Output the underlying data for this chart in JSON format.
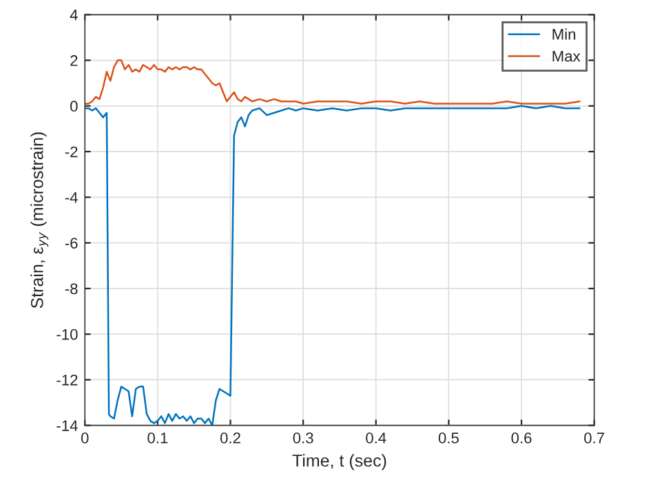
{
  "chart_data": {
    "type": "line",
    "xlabel": "Time, t (sec)",
    "ylabel": "Strain, ε$_{yy}$ (microstrain)",
    "xlim": [
      0,
      0.7
    ],
    "xticks": [
      0,
      0.1,
      0.2,
      0.3,
      0.4,
      0.5,
      0.6,
      0.7
    ],
    "ylim": [
      -14,
      4
    ],
    "yticks": [
      -14,
      -12,
      -10,
      -8,
      -6,
      -4,
      -2,
      0,
      2,
      4
    ],
    "grid": true,
    "legend": "top right",
    "series": [
      {
        "name": "Min",
        "color": "#0072bd",
        "x": [
          0,
          0.005,
          0.01,
          0.015,
          0.02,
          0.025,
          0.03,
          0.033,
          0.035,
          0.04,
          0.045,
          0.05,
          0.055,
          0.06,
          0.065,
          0.07,
          0.075,
          0.08,
          0.085,
          0.09,
          0.095,
          0.1,
          0.105,
          0.11,
          0.115,
          0.12,
          0.125,
          0.13,
          0.135,
          0.14,
          0.145,
          0.15,
          0.155,
          0.16,
          0.165,
          0.17,
          0.175,
          0.18,
          0.185,
          0.19,
          0.195,
          0.2,
          0.205,
          0.21,
          0.215,
          0.22,
          0.225,
          0.23,
          0.24,
          0.25,
          0.26,
          0.27,
          0.28,
          0.29,
          0.3,
          0.32,
          0.34,
          0.36,
          0.38,
          0.4,
          0.42,
          0.44,
          0.46,
          0.48,
          0.5,
          0.52,
          0.54,
          0.56,
          0.58,
          0.6,
          0.62,
          0.64,
          0.66,
          0.68
        ],
        "values": [
          -0.1,
          -0.1,
          -0.2,
          -0.1,
          -0.3,
          -0.5,
          -0.3,
          -13.5,
          -13.6,
          -13.7,
          -12.9,
          -12.3,
          -12.4,
          -12.5,
          -13.6,
          -12.4,
          -12.3,
          -12.3,
          -13.5,
          -13.8,
          -13.9,
          -13.8,
          -13.6,
          -13.9,
          -13.5,
          -13.8,
          -13.5,
          -13.7,
          -13.6,
          -13.8,
          -13.6,
          -13.9,
          -13.7,
          -13.7,
          -13.9,
          -13.7,
          -14.0,
          -12.9,
          -12.4,
          -12.5,
          -12.6,
          -12.7,
          -1.3,
          -0.7,
          -0.5,
          -0.9,
          -0.4,
          -0.2,
          -0.1,
          -0.4,
          -0.3,
          -0.2,
          -0.1,
          -0.2,
          -0.1,
          -0.2,
          -0.1,
          -0.2,
          -0.1,
          -0.1,
          -0.2,
          -0.1,
          -0.1,
          -0.1,
          -0.1,
          -0.1,
          -0.1,
          -0.1,
          -0.1,
          0.0,
          -0.1,
          0.0,
          -0.1,
          -0.1
        ]
      },
      {
        "name": "Max",
        "color": "#d95319",
        "x": [
          0,
          0.005,
          0.01,
          0.015,
          0.02,
          0.025,
          0.03,
          0.035,
          0.04,
          0.045,
          0.05,
          0.055,
          0.06,
          0.065,
          0.07,
          0.075,
          0.08,
          0.085,
          0.09,
          0.095,
          0.1,
          0.105,
          0.11,
          0.115,
          0.12,
          0.125,
          0.13,
          0.135,
          0.14,
          0.145,
          0.15,
          0.155,
          0.16,
          0.165,
          0.17,
          0.175,
          0.18,
          0.185,
          0.19,
          0.195,
          0.2,
          0.205,
          0.21,
          0.215,
          0.22,
          0.225,
          0.23,
          0.24,
          0.25,
          0.26,
          0.27,
          0.28,
          0.29,
          0.3,
          0.32,
          0.34,
          0.36,
          0.38,
          0.4,
          0.42,
          0.44,
          0.46,
          0.48,
          0.5,
          0.52,
          0.54,
          0.56,
          0.58,
          0.6,
          0.62,
          0.64,
          0.66,
          0.68
        ],
        "values": [
          0.1,
          0.1,
          0.2,
          0.4,
          0.3,
          0.8,
          1.5,
          1.1,
          1.7,
          2.0,
          2.0,
          1.6,
          1.8,
          1.5,
          1.6,
          1.5,
          1.8,
          1.7,
          1.6,
          1.8,
          1.6,
          1.6,
          1.5,
          1.7,
          1.6,
          1.7,
          1.6,
          1.7,
          1.7,
          1.6,
          1.7,
          1.6,
          1.6,
          1.4,
          1.2,
          1.0,
          0.9,
          1.0,
          0.6,
          0.2,
          0.4,
          0.6,
          0.3,
          0.2,
          0.4,
          0.3,
          0.2,
          0.3,
          0.2,
          0.3,
          0.2,
          0.2,
          0.2,
          0.1,
          0.2,
          0.2,
          0.2,
          0.1,
          0.2,
          0.2,
          0.1,
          0.2,
          0.1,
          0.1,
          0.1,
          0.1,
          0.1,
          0.2,
          0.1,
          0.1,
          0.1,
          0.1,
          0.2
        ]
      }
    ]
  }
}
